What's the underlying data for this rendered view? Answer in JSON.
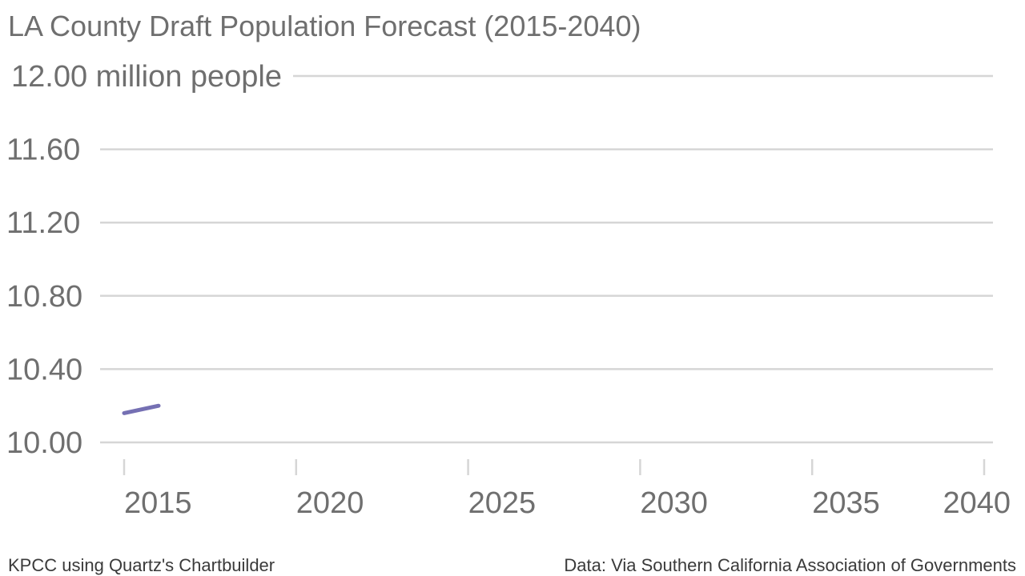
{
  "chart_data": {
    "type": "line",
    "title": "LA County Draft Population Forecast (2015-2040)",
    "y_unit": "million people",
    "xlim": [
      2015,
      2040
    ],
    "ylim": [
      10.0,
      12.0
    ],
    "x_ticks": [
      {
        "value": 2015,
        "label": "2015"
      },
      {
        "value": 2020,
        "label": "2020"
      },
      {
        "value": 2025,
        "label": "2025"
      },
      {
        "value": 2030,
        "label": "2030"
      },
      {
        "value": 2035,
        "label": "2035"
      },
      {
        "value": 2040,
        "label": "2040"
      }
    ],
    "y_ticks": [
      {
        "value": 12.0,
        "label": "12.00"
      },
      {
        "value": 11.6,
        "label": "11.60"
      },
      {
        "value": 11.2,
        "label": "11.20"
      },
      {
        "value": 10.8,
        "label": "10.80"
      },
      {
        "value": 10.4,
        "label": "10.40"
      },
      {
        "value": 10.0,
        "label": "10.00"
      }
    ],
    "grid": true,
    "legend": "none",
    "series": [
      {
        "color": "#7570b3",
        "points": [
          {
            "x": 2015,
            "y": 10.16
          },
          {
            "x": 2016,
            "y": 10.2
          }
        ]
      }
    ]
  },
  "footer": {
    "credit": "KPCC using Quartz's Chartbuilder",
    "source": "Data: Via Southern California Association of Governments"
  }
}
